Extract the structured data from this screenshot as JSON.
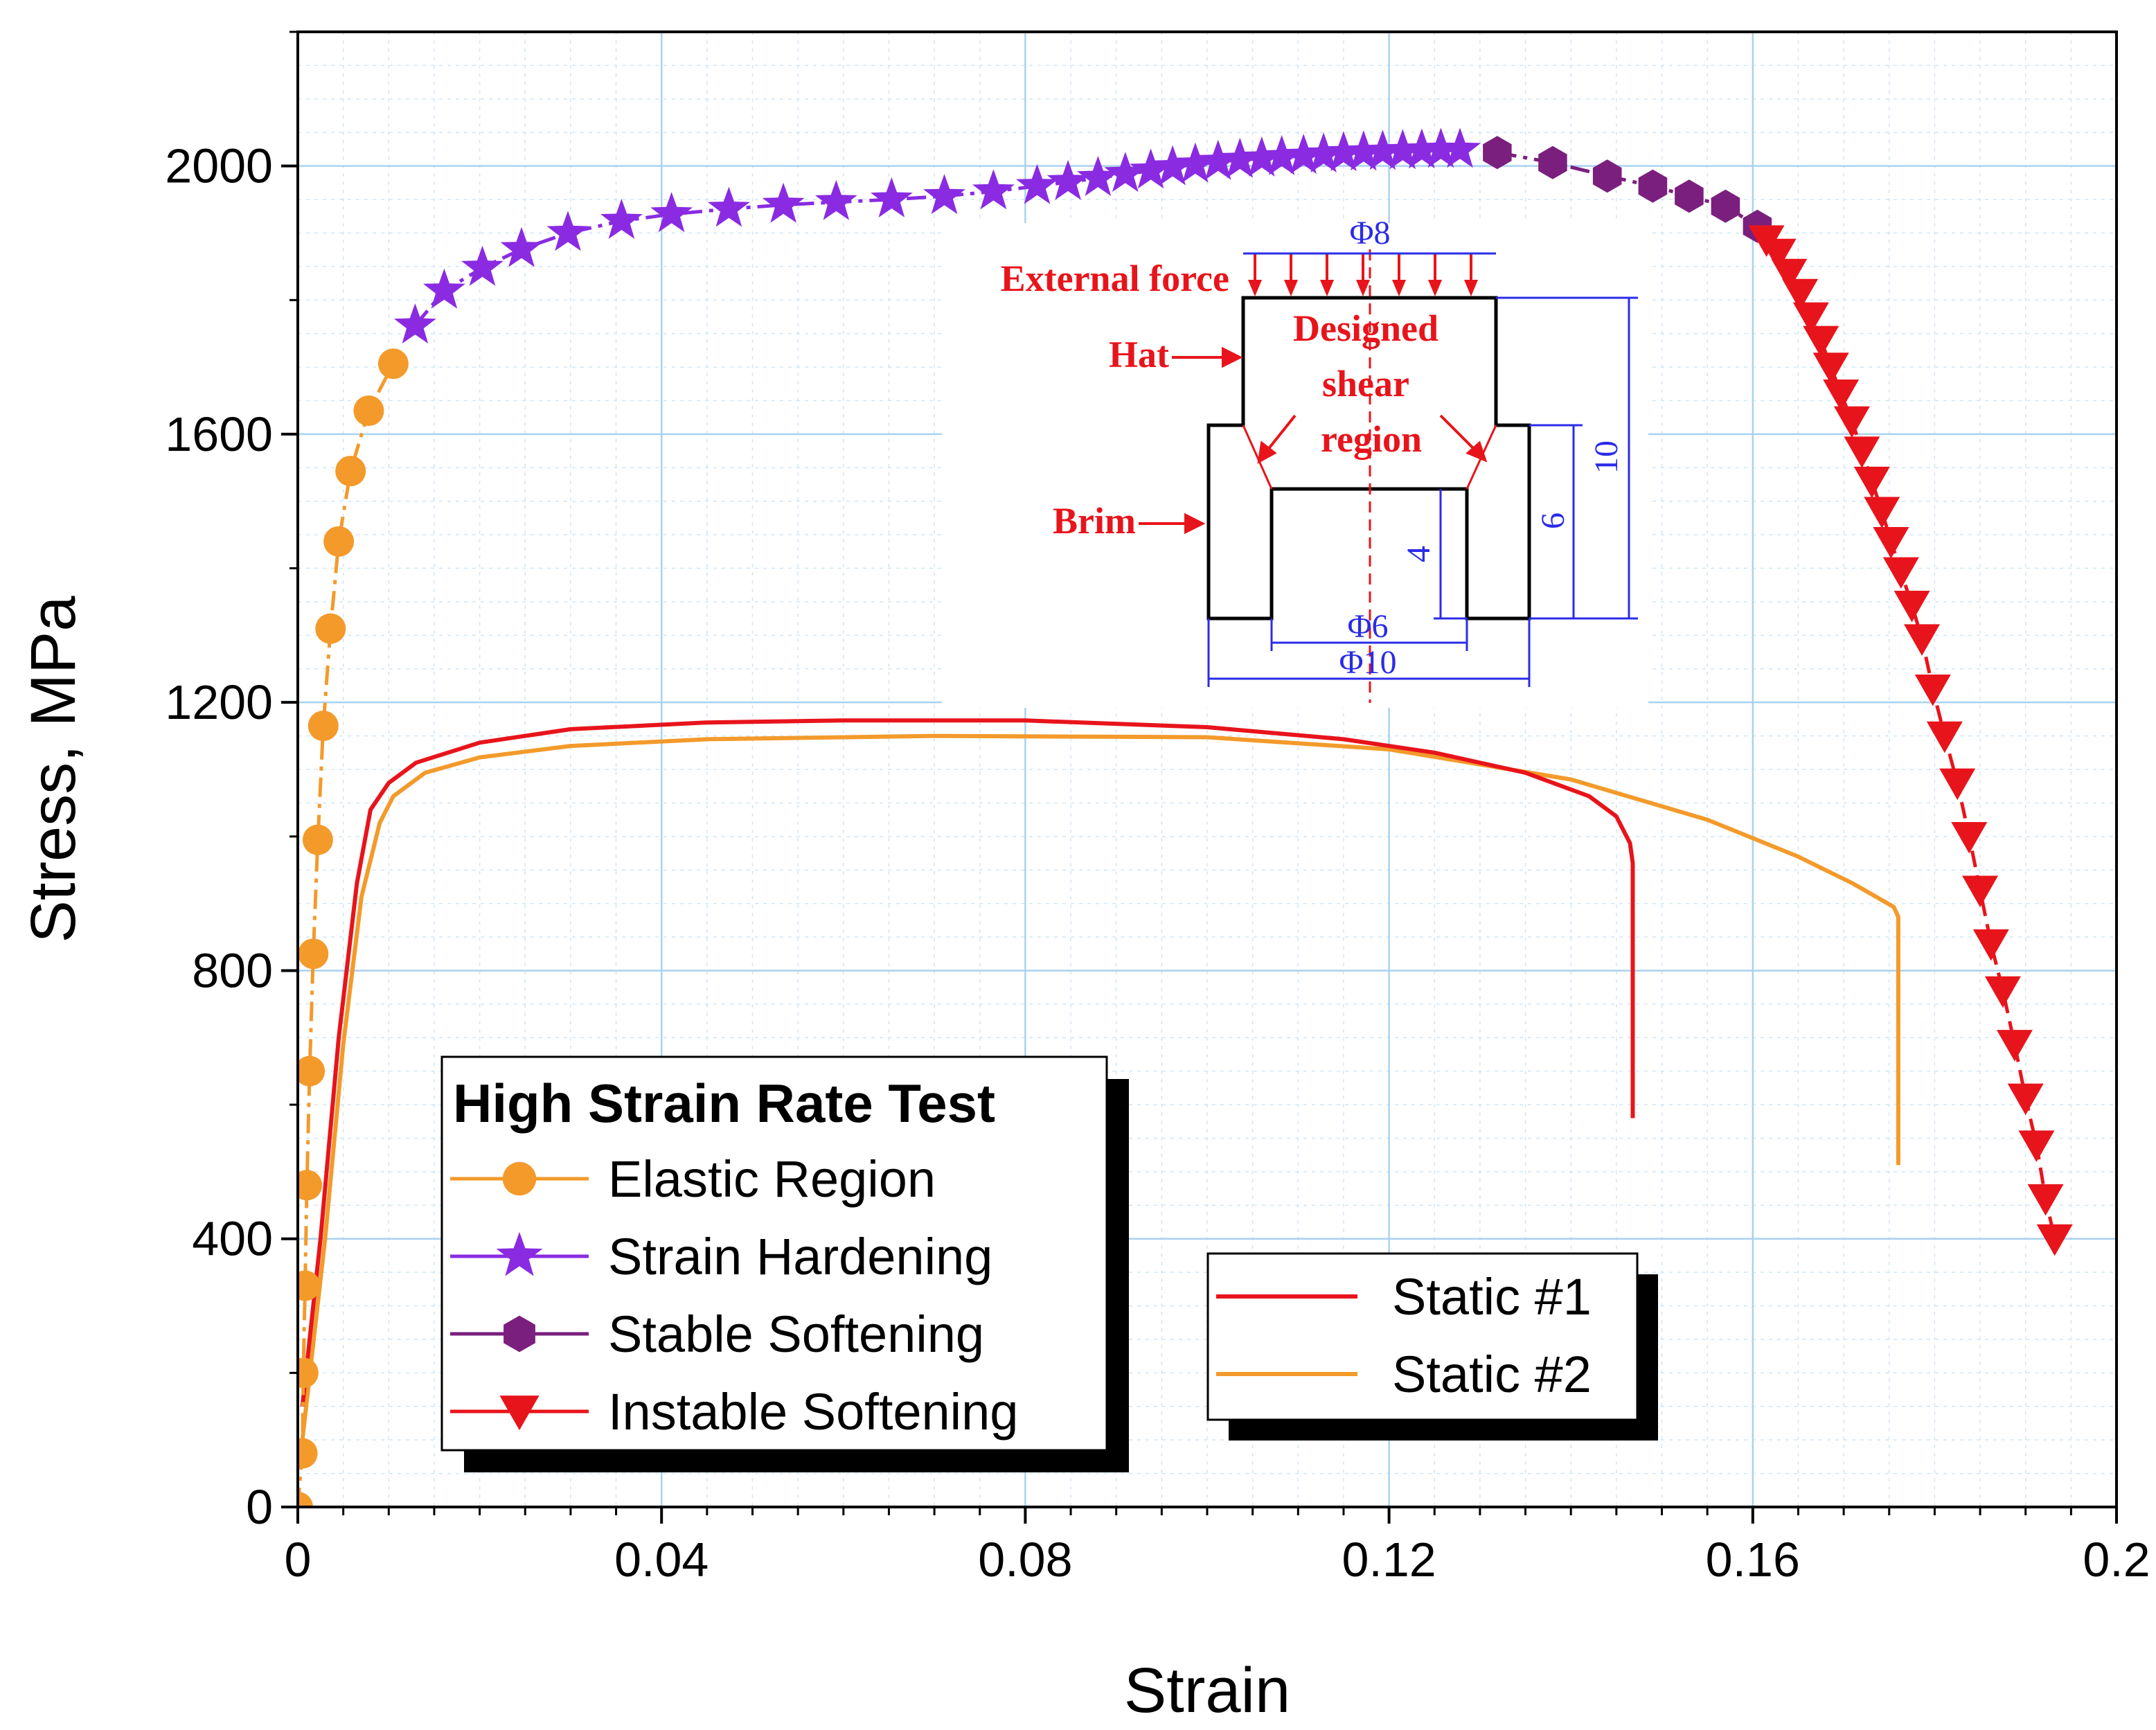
{
  "chart_data": {
    "type": "line",
    "xlabel": "Strain",
    "ylabel": "Stress, MPa",
    "xlim": [
      0,
      0.2
    ],
    "ylim": [
      0,
      2200
    ],
    "x_ticks": [
      "0",
      "0.04",
      "0.08",
      "0.12",
      "0.16",
      "0.2"
    ],
    "x_tick_values": [
      0,
      0.04,
      0.08,
      0.12,
      0.16,
      0.2
    ],
    "y_ticks": [
      "0",
      "400",
      "800",
      "1200",
      "1600",
      "2000"
    ],
    "y_tick_values": [
      0,
      400,
      800,
      1200,
      1600,
      2000
    ],
    "grid": true,
    "series": [
      {
        "name": "Elastic Region",
        "color": "#F39A2B",
        "marker": "circle",
        "line": "dash-dot",
        "points": [
          [
            0.0,
            0
          ],
          [
            0.0005,
            80
          ],
          [
            0.0006,
            200
          ],
          [
            0.0008,
            330
          ],
          [
            0.001,
            480
          ],
          [
            0.0013,
            650
          ],
          [
            0.0017,
            825
          ],
          [
            0.0022,
            995
          ],
          [
            0.0028,
            1165
          ],
          [
            0.0036,
            1310
          ],
          [
            0.0045,
            1440
          ],
          [
            0.0058,
            1545
          ],
          [
            0.0078,
            1635
          ],
          [
            0.0105,
            1705
          ]
        ]
      },
      {
        "name": "Strain Hardening",
        "color": "#8A2BE2",
        "marker": "star",
        "line": "dash-dot",
        "points": [
          [
            0.0129,
            1762
          ],
          [
            0.0161,
            1814
          ],
          [
            0.0203,
            1848
          ],
          [
            0.0246,
            1876
          ],
          [
            0.0297,
            1900
          ],
          [
            0.0356,
            1918
          ],
          [
            0.0411,
            1928
          ],
          [
            0.0474,
            1936
          ],
          [
            0.0534,
            1942
          ],
          [
            0.0592,
            1946
          ],
          [
            0.0653,
            1950
          ],
          [
            0.0711,
            1955
          ],
          [
            0.0765,
            1962
          ],
          [
            0.0813,
            1970
          ],
          [
            0.0847,
            1976
          ],
          [
            0.088,
            1982
          ],
          [
            0.091,
            1988
          ],
          [
            0.0938,
            1993
          ],
          [
            0.0962,
            1998
          ],
          [
            0.0987,
            2002
          ],
          [
            0.1012,
            2006
          ],
          [
            0.1036,
            2009
          ],
          [
            0.106,
            2011
          ],
          [
            0.1082,
            2013
          ],
          [
            0.1106,
            2015
          ],
          [
            0.1128,
            2017
          ],
          [
            0.115,
            2019
          ],
          [
            0.1172,
            2020
          ],
          [
            0.1193,
            2021
          ],
          [
            0.1215,
            2022
          ],
          [
            0.1236,
            2023
          ],
          [
            0.1257,
            2024
          ],
          [
            0.1278,
            2024
          ]
        ]
      },
      {
        "name": "Stable Softening",
        "color": "#7B1F7F",
        "marker": "hexagon",
        "line": "dash-dot",
        "points": [
          [
            0.1319,
            2020
          ],
          [
            0.138,
            2005
          ],
          [
            0.144,
            1985
          ],
          [
            0.149,
            1970
          ],
          [
            0.153,
            1955
          ],
          [
            0.157,
            1940
          ],
          [
            0.1605,
            1910
          ]
        ]
      },
      {
        "name": "Instable Softening",
        "color": "#E8141B",
        "marker": "triangle-down",
        "line": "dash",
        "points": [
          [
            0.1615,
            1890
          ],
          [
            0.1628,
            1870
          ],
          [
            0.164,
            1840
          ],
          [
            0.1652,
            1810
          ],
          [
            0.1664,
            1775
          ],
          [
            0.1675,
            1740
          ],
          [
            0.1686,
            1700
          ],
          [
            0.1697,
            1660
          ],
          [
            0.1709,
            1620
          ],
          [
            0.172,
            1575
          ],
          [
            0.1731,
            1530
          ],
          [
            0.1742,
            1485
          ],
          [
            0.1752,
            1440
          ],
          [
            0.1763,
            1395
          ],
          [
            0.1775,
            1345
          ],
          [
            0.1786,
            1295
          ],
          [
            0.1798,
            1220
          ],
          [
            0.1811,
            1150
          ],
          [
            0.1825,
            1080
          ],
          [
            0.1838,
            1000
          ],
          [
            0.185,
            920
          ],
          [
            0.1862,
            840
          ],
          [
            0.1875,
            770
          ],
          [
            0.1888,
            690
          ],
          [
            0.19,
            610
          ],
          [
            0.1912,
            540
          ],
          [
            0.1922,
            460
          ],
          [
            0.1932,
            400
          ]
        ]
      },
      {
        "name": "Static #1",
        "color": "#E8141B",
        "marker": "none",
        "line": "solid",
        "points": [
          [
            0.0005,
            150
          ],
          [
            0.0025,
            400
          ],
          [
            0.0045,
            700
          ],
          [
            0.0065,
            930
          ],
          [
            0.008,
            1040
          ],
          [
            0.01,
            1080
          ],
          [
            0.013,
            1110
          ],
          [
            0.02,
            1140
          ],
          [
            0.03,
            1160
          ],
          [
            0.045,
            1170
          ],
          [
            0.06,
            1173
          ],
          [
            0.08,
            1173
          ],
          [
            0.1,
            1163
          ],
          [
            0.115,
            1145
          ],
          [
            0.125,
            1125
          ],
          [
            0.135,
            1095
          ],
          [
            0.142,
            1060
          ],
          [
            0.145,
            1030
          ],
          [
            0.1465,
            990
          ],
          [
            0.1468,
            960
          ],
          [
            0.1468,
            580
          ]
        ]
      },
      {
        "name": "Static #2",
        "color": "#F39A2B",
        "marker": "none",
        "line": "solid",
        "points": [
          [
            0.0005,
            100
          ],
          [
            0.003,
            400
          ],
          [
            0.005,
            690
          ],
          [
            0.007,
            910
          ],
          [
            0.009,
            1020
          ],
          [
            0.0105,
            1060
          ],
          [
            0.014,
            1095
          ],
          [
            0.02,
            1118
          ],
          [
            0.03,
            1135
          ],
          [
            0.045,
            1145
          ],
          [
            0.07,
            1150
          ],
          [
            0.1,
            1148
          ],
          [
            0.12,
            1130
          ],
          [
            0.14,
            1085
          ],
          [
            0.155,
            1025
          ],
          [
            0.165,
            970
          ],
          [
            0.171,
            930
          ],
          [
            0.1755,
            895
          ],
          [
            0.176,
            880
          ],
          [
            0.176,
            510
          ]
        ]
      }
    ],
    "legend_main": {
      "title": "High Strain Rate Test",
      "entries": [
        "Elastic Region",
        "Strain Hardening",
        "Stable Softening",
        "Instable Softening"
      ],
      "placement": "lower-left"
    },
    "legend_static": {
      "entries": [
        "Static #1",
        "Static #2"
      ],
      "placement": "lower-center"
    },
    "inset": {
      "description_labels": {
        "external_force": "External force",
        "hat": "Hat",
        "brim": "Brim",
        "designed_line1": "Designed",
        "designed_line2": "shear",
        "designed_line3": "region"
      },
      "dimensions": {
        "top_dia": "Φ8",
        "inner_dia": "Φ6",
        "outer_dia": "Φ10",
        "height_total": "10",
        "height_brim": "6",
        "height_inner": "4"
      },
      "colors": {
        "label": "#E8141B",
        "dimension": "#2B2BE8",
        "outline": "#000000"
      }
    }
  }
}
